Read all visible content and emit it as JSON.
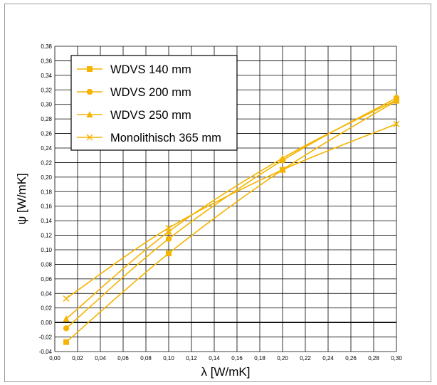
{
  "chart_data": {
    "type": "line",
    "title": "",
    "xlabel": "λ [W/mK]",
    "ylabel": "ψ [W/mK]",
    "xlim": [
      0.0,
      0.3
    ],
    "ylim": [
      -0.04,
      0.38
    ],
    "x_ticks": [
      "0,00",
      "0,02",
      "0,04",
      "0,06",
      "0,08",
      "0,10",
      "0,12",
      "0,14",
      "0,16",
      "0,18",
      "0,20",
      "0,22",
      "0,24",
      "0,26",
      "0,28",
      "0,30"
    ],
    "y_ticks": [
      "-0,04",
      "-0,02",
      "0,00",
      "0,02",
      "0,04",
      "0,06",
      "0,08",
      "0,10",
      "0,12",
      "0,14",
      "0,16",
      "0,18",
      "0,20",
      "0,22",
      "0,24",
      "0,26",
      "0,28",
      "0,30",
      "0,32",
      "0,34",
      "0,36",
      "0,38"
    ],
    "grid": true,
    "legend_position": "top-left",
    "series_color": "#f5b400",
    "series": [
      {
        "name": "WDVS 140 mm",
        "marker": "square",
        "x": [
          0.01,
          0.1,
          0.2,
          0.3
        ],
        "y": [
          -0.027,
          0.095,
          0.21,
          0.305
        ]
      },
      {
        "name": "WDVS 200 mm",
        "marker": "circle",
        "x": [
          0.01,
          0.1,
          0.2,
          0.3
        ],
        "y": [
          -0.008,
          0.115,
          0.223,
          0.309
        ]
      },
      {
        "name": "WDVS 250 mm",
        "marker": "triangle",
        "x": [
          0.01,
          0.1,
          0.2,
          0.3
        ],
        "y": [
          0.005,
          0.125,
          0.226,
          0.306
        ]
      },
      {
        "name": "Monolithisch 365 mm",
        "marker": "x",
        "x": [
          0.01,
          0.1,
          0.2,
          0.3
        ],
        "y": [
          0.033,
          0.13,
          0.21,
          0.273
        ]
      }
    ]
  }
}
